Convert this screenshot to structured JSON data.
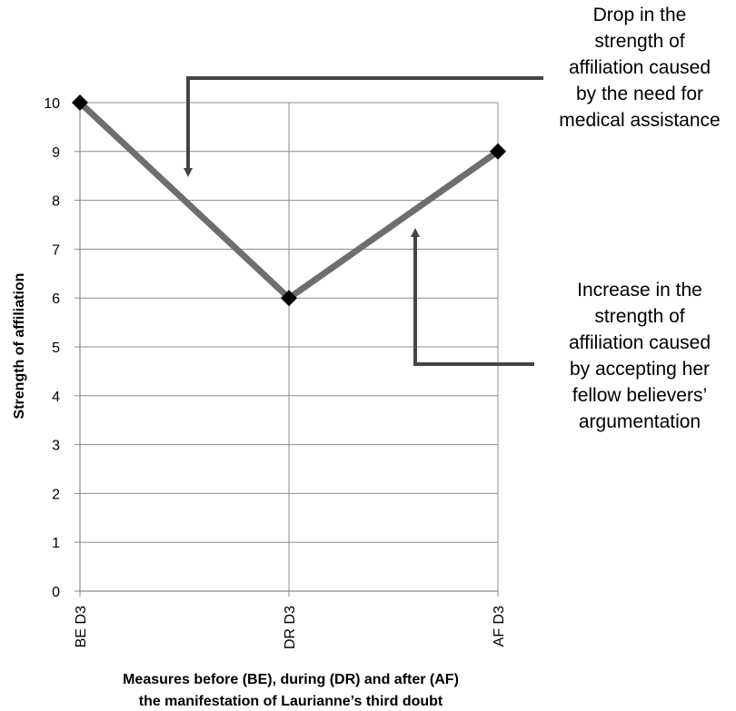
{
  "chart_data": {
    "type": "line",
    "categories": [
      "BE D3",
      "DR D3",
      "AF D3"
    ],
    "series": [
      {
        "values": [
          10,
          6,
          9
        ]
      }
    ],
    "title": "",
    "xlabel_lines": [
      "Measures before (BE), during (DR) and after (AF)",
      "the manifestation of Laurianne’s third doubt"
    ],
    "ylabel": "Strength of affiliation",
    "ylim": [
      0,
      10
    ],
    "yticks": [
      "0",
      "1",
      "2",
      "3",
      "4",
      "5",
      "6",
      "7",
      "8",
      "9",
      "10"
    ],
    "grid": true,
    "line_color": "#6e6e6e",
    "marker_color": "#000000",
    "marker": "diamond",
    "annotations": [
      {
        "lines": [
          "Drop in the",
          "strength of",
          "affiliation caused",
          "by the need for",
          "medical assistance"
        ]
      },
      {
        "lines": [
          "Increase in the",
          "strength of",
          "affiliation caused",
          "by accepting her",
          "fellow believers’",
          "argumentation"
        ]
      }
    ]
  }
}
